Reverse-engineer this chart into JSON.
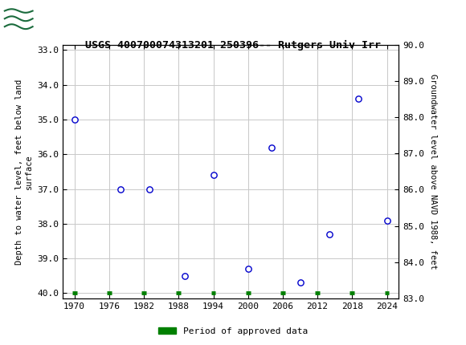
{
  "title": "USGS 400700074313201 250396-- Rutgers Univ Irr",
  "x_data": [
    1970,
    1978,
    1983,
    1989,
    1994,
    2000,
    2004,
    2009,
    2014,
    2019,
    2024
  ],
  "y_depth": [
    35.0,
    37.0,
    37.0,
    39.5,
    36.6,
    39.3,
    35.8,
    39.7,
    38.3,
    34.4,
    37.9
  ],
  "xlim": [
    1968,
    2026
  ],
  "ylim_left": [
    40.15,
    32.85
  ],
  "ylim_right": [
    83.0,
    90.0
  ],
  "xticks": [
    1970,
    1976,
    1982,
    1988,
    1994,
    2000,
    2006,
    2012,
    2018,
    2024
  ],
  "yticks_left": [
    33.0,
    34.0,
    35.0,
    36.0,
    37.0,
    38.0,
    39.0,
    40.0
  ],
  "yticks_right": [
    83.0,
    84.0,
    85.0,
    86.0,
    87.0,
    88.0,
    89.0,
    90.0
  ],
  "ylabel_left": "Depth to water level, feet below land\nsurface",
  "ylabel_right": "Groundwater level above NAVD 1988, feet",
  "marker_color": "#0000cc",
  "marker_face": "white",
  "legend_label": "Period of approved data",
  "legend_color": "#008000",
  "header_bg": "#1a6b3c",
  "green_bar_positions": [
    1970,
    1976,
    1982,
    1988,
    1994,
    2000,
    2006,
    2012,
    2018,
    2024
  ],
  "background_color": "#ffffff",
  "grid_color": "#c8c8c8"
}
